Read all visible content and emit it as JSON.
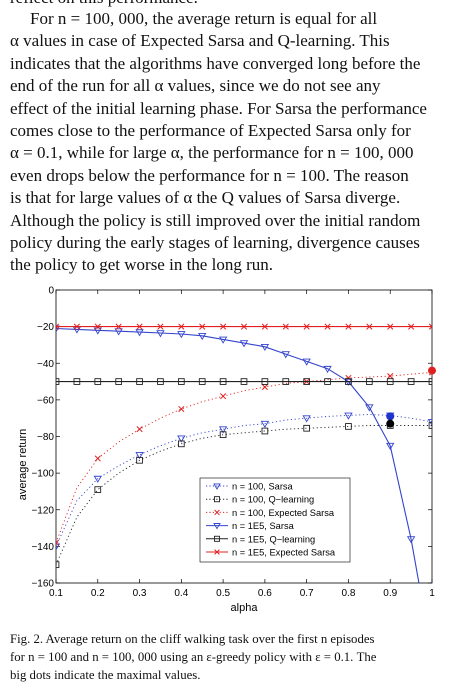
{
  "top_clipped": "reflect on this performance.",
  "paragraph_lines": [
    "For n = 100, 000, the average return is equal for all",
    "α values in case of Expected Sarsa and Q-learning. This",
    "indicates that the algorithms have converged long before the",
    "end of the run for all α values, since we do not see any",
    "effect of the initial learning phase. For Sarsa the performance",
    "comes close to the performance of Expected Sarsa only for",
    "α = 0.1, while for large α, the performance for n = 100, 000",
    "even drops below the performance for n = 100. The reason",
    "is that for large values of α the Q values of Sarsa diverge.",
    "Although the policy is still improved over the initial random",
    "policy during the early stages of learning, divergence causes",
    "the policy to get worse in the long run."
  ],
  "caption_lines": [
    "Fig. 2.   Average return on the cliff walking task over the first n episodes",
    "for n = 100 and n = 100, 000 using an ε-greedy policy with ε = 0.1. The",
    "big dots indicate the maximal values."
  ],
  "chart_data": {
    "type": "line",
    "xlabel": "alpha",
    "ylabel": "average return",
    "xlim": [
      0.1,
      1
    ],
    "ylim": [
      -160,
      0
    ],
    "xticks": [
      "0.1",
      "0.2",
      "0.3",
      "0.4",
      "0.5",
      "0.6",
      "0.7",
      "0.8",
      "0.9",
      "1"
    ],
    "yticks": [
      "0",
      "−20",
      "−40",
      "−60",
      "−80",
      "−100",
      "−120",
      "−140",
      "−160"
    ],
    "legend_position": "bottom-right",
    "x": [
      0.1,
      0.15,
      0.2,
      0.25,
      0.3,
      0.35,
      0.4,
      0.45,
      0.5,
      0.55,
      0.6,
      0.65,
      0.7,
      0.75,
      0.8,
      0.85,
      0.9,
      0.95,
      1.0
    ],
    "series": [
      {
        "name": "n = 100, Sarsa",
        "color": "#3344cc",
        "marker": "tri",
        "dash": "dot",
        "values": [
          -140,
          -115,
          -103,
          -96,
          -90,
          -85,
          -81,
          -78,
          -76,
          -74,
          -73,
          -71,
          -70,
          -69,
          -68.5,
          -68,
          -68.5,
          -70,
          -72
        ]
      },
      {
        "name": "n = 100, Q−learning",
        "color": "#222222",
        "marker": "sq",
        "dash": "dot",
        "values": [
          -150,
          -124,
          -109,
          -100,
          -93,
          -88,
          -84,
          -81,
          -79,
          -78,
          -77,
          -76,
          -75.5,
          -75,
          -74.5,
          -74,
          -74,
          -74,
          -74
        ]
      },
      {
        "name": "n = 100, Expected Sarsa",
        "color": "#e02020",
        "marker": "x",
        "dash": "dot",
        "values": [
          -138,
          -108,
          -92,
          -83,
          -76,
          -70,
          -65,
          -61,
          -58,
          -55,
          -53,
          -51,
          -50,
          -49,
          -48,
          -47.5,
          -47,
          -46,
          -45
        ]
      },
      {
        "name": "n = 1E5, Sarsa",
        "color": "#3344cc",
        "marker": "tri",
        "dash": "solid",
        "values": [
          -21,
          -21.5,
          -22,
          -22.5,
          -23,
          -23.5,
          -24,
          -25,
          -27,
          -29,
          -31,
          -35,
          -39,
          -43,
          -50,
          -64,
          -85,
          -136,
          -200
        ]
      },
      {
        "name": "n = 1E5, Q−learning",
        "color": "#222222",
        "marker": "sq",
        "dash": "solid",
        "values": [
          -50,
          -50,
          -50,
          -50,
          -50,
          -50,
          -50,
          -50,
          -50,
          -50,
          -50,
          -50,
          -50,
          -50,
          -50,
          -50,
          -50,
          -50,
          -50
        ]
      },
      {
        "name": "n = 1E5, Expected Sarsa",
        "color": "#e02020",
        "marker": "x",
        "dash": "solid",
        "values": [
          -20,
          -20,
          -20,
          -20,
          -20,
          -20,
          -20,
          -20,
          -20,
          -20,
          -20,
          -20,
          -20,
          -20,
          -20,
          -20,
          -20,
          -20,
          -20
        ]
      }
    ],
    "max_points": [
      {
        "x": 0.9,
        "y": -69,
        "color": "#2233cc"
      },
      {
        "x": 0.9,
        "y": -73,
        "color": "#000000"
      },
      {
        "x": 1.0,
        "y": -44,
        "color": "#e02020"
      }
    ]
  }
}
